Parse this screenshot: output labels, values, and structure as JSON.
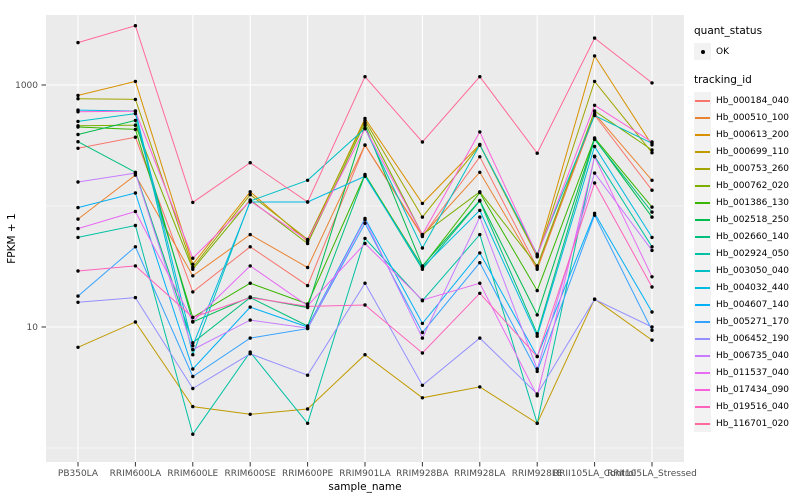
{
  "figure": {
    "background": "#FFFFFF",
    "panel_background": "#EBEBEB",
    "grid_color": "#FFFFFF",
    "tick_color": "#333333",
    "tick_label_color": "#4D4D4D",
    "axis_title_color": "#000000",
    "point_color": "#000000"
  },
  "legend": {
    "quant_status_title": "quant_status",
    "quant_status_items": [
      {
        "label": "OK",
        "marker": "point",
        "color": "#000000"
      }
    ],
    "tracking_id_title": "tracking_id"
  },
  "chart_data": {
    "type": "line",
    "title": "",
    "xlabel": "sample_name",
    "ylabel": "FPKM + 1",
    "y_scale": "log10",
    "y_major_ticks": [
      10,
      1000
    ],
    "y_minor_gridlines": [
      1,
      100
    ],
    "ylim": [
      0.77,
      3800
    ],
    "legend_position": "right",
    "grid": true,
    "marker": "black point (quant_status = OK) at every observation",
    "categories": [
      "PB350LA",
      "RRIM600LA",
      "RRIM600LE",
      "RRIM600SE",
      "RRIM600PE",
      "RRIM901LA",
      "RRIM928BA",
      "RRIM928LA",
      "RRIM928LE",
      "RRII105LA_Control",
      "RRII105LA_Stressed"
    ],
    "series": [
      {
        "name": "Hb_000184_040",
        "color": "#F8766D",
        "values": [
          300,
          370,
          19.5,
          46,
          22,
          318,
          56,
          255,
          31,
          565,
          135
        ]
      },
      {
        "name": "Hb_000510_100",
        "color": "#EA8331",
        "values": [
          78,
          180,
          26.5,
          58,
          31,
          320,
          57,
          190,
          30,
          580,
          163
        ]
      },
      {
        "name": "Hb_000613_200",
        "color": "#D89000",
        "values": [
          820,
          1070,
          33,
          131,
          51,
          530,
          105,
          322,
          39,
          1740,
          320
        ]
      },
      {
        "name": "Hb_000699_110",
        "color": "#C09B00",
        "values": [
          6.8,
          11,
          2.2,
          1.9,
          2.1,
          5.9,
          2.6,
          3.2,
          1.6,
          17,
          7.8
        ]
      },
      {
        "name": "Hb_000753_260",
        "color": "#A3A500",
        "values": [
          770,
          760,
          31,
          124,
          53,
          510,
          81,
          318,
          38,
          1070,
          276
        ]
      },
      {
        "name": "Hb_000762_020",
        "color": "#7CAE00",
        "values": [
          460,
          465,
          30,
          112,
          49,
          485,
          58,
          131,
          32,
          610,
          290
        ]
      },
      {
        "name": "Hb_001386_130",
        "color": "#39B600",
        "values": [
          450,
          430,
          12,
          23,
          15.5,
          182,
          31.5,
          129,
          20,
          365,
          98
        ]
      },
      {
        "name": "Hb_002518_250",
        "color": "#00BB4E",
        "values": [
          390,
          510,
          11,
          17.7,
          14.5,
          465,
          32,
          111,
          12.6,
          360,
          81
        ]
      },
      {
        "name": "Hb_002660_140",
        "color": "#00BF7D",
        "values": [
          340,
          190,
          7.4,
          17.5,
          10.2,
          180,
          30,
          110,
          8.8,
          355,
          89
        ]
      },
      {
        "name": "Hb_002924_050",
        "color": "#00C1A3",
        "values": [
          55,
          69,
          1.3,
          6.2,
          1.6,
          54,
          16.5,
          58,
          1.6,
          258,
          46
        ]
      },
      {
        "name": "Hb_003050_040",
        "color": "#00BFC4",
        "values": [
          500,
          580,
          5.9,
          110,
          163,
          437,
          45,
          320,
          40,
          560,
          330
        ]
      },
      {
        "name": "Hb_004032_440",
        "color": "#00BAE0",
        "values": [
          620,
          610,
          7.0,
          108,
          108,
          176,
          31,
          92,
          8.4,
          310,
          55
        ]
      },
      {
        "name": "Hb_004607_140",
        "color": "#00B0F6",
        "values": [
          97,
          128,
          4.5,
          14.6,
          10,
          79,
          10.7,
          41,
          5.7,
          87,
          13.3
        ]
      },
      {
        "name": "Hb_005271_170",
        "color": "#35A2FF",
        "values": [
          18,
          46,
          3.9,
          8.1,
          9.7,
          72,
          9.0,
          34,
          4.3,
          84,
          9.4
        ]
      },
      {
        "name": "Hb_006452_190",
        "color": "#9590FF",
        "values": [
          16,
          17.5,
          3.1,
          6.0,
          4.0,
          23,
          3.3,
          8.1,
          2.8,
          16.9,
          10
        ]
      },
      {
        "name": "Hb_006735_040",
        "color": "#C77CFF",
        "values": [
          158,
          187,
          6.5,
          11.4,
          9.8,
          77,
          8.1,
          81,
          4.5,
          187,
          43
        ]
      },
      {
        "name": "Hb_011537_040",
        "color": "#E76BF3",
        "values": [
          65,
          90,
          11.1,
          32,
          15,
          49,
          16.7,
          23,
          2.7,
          255,
          26
        ]
      },
      {
        "name": "Hb_017434_090",
        "color": "#FA62DB",
        "values": [
          600,
          607,
          37,
          110,
          52,
          435,
          58,
          410,
          39,
          680,
          338
        ]
      },
      {
        "name": "Hb_019516_040",
        "color": "#FF62BC",
        "values": [
          29,
          32,
          12,
          17.5,
          14.8,
          15.2,
          6.1,
          19,
          5.7,
          155,
          21.4
        ]
      },
      {
        "name": "Hb_116701_020",
        "color": "#FF6A98",
        "values": [
          2240,
          3090,
          107,
          228,
          108,
          1170,
          338,
          1170,
          273,
          2440,
          1040
        ]
      }
    ]
  }
}
